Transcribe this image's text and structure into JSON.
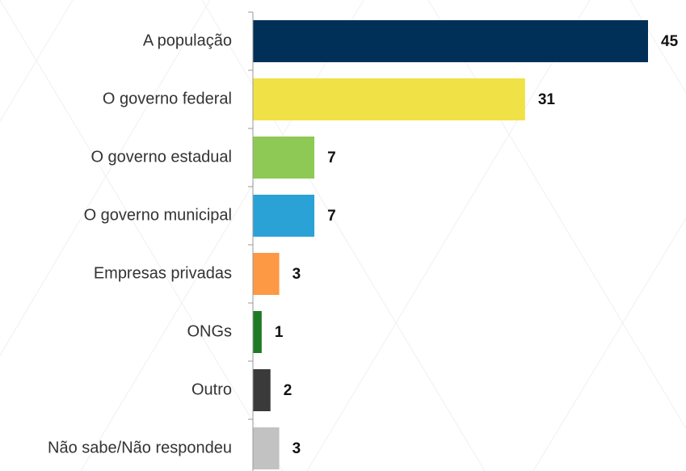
{
  "chart_data": {
    "type": "bar",
    "orientation": "horizontal",
    "categories": [
      "A população",
      "O governo federal",
      "O governo estadual",
      "O governo municipal",
      "Empresas privadas",
      "ONGs",
      "Outro",
      "Não sabe/Não respondeu"
    ],
    "values": [
      45,
      31,
      7,
      7,
      3,
      1,
      2,
      3
    ],
    "colors": [
      "#003057",
      "#f0e246",
      "#8fc955",
      "#2aa2d6",
      "#fd9844",
      "#1f7a26",
      "#3a3a3a",
      "#c2c2c2"
    ]
  }
}
